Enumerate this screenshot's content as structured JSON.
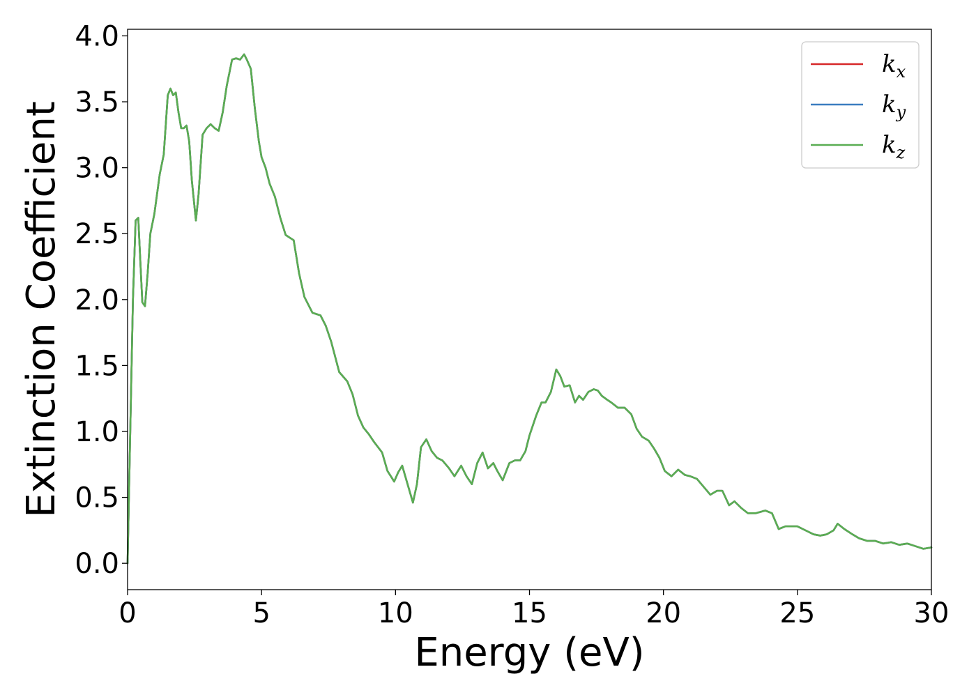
{
  "chart_data": {
    "type": "line",
    "title": "",
    "xlabel": "Energy (eV)",
    "ylabel": "Extinction Coefficient",
    "xlim": [
      0,
      30
    ],
    "ylim": [
      -0.2,
      4.05
    ],
    "xticks": [
      0,
      5,
      10,
      15,
      20,
      25,
      30
    ],
    "xtick_labels": [
      "0",
      "5",
      "10",
      "15",
      "20",
      "25",
      "30"
    ],
    "yticks": [
      0.0,
      0.5,
      1.0,
      1.5,
      2.0,
      2.5,
      3.0,
      3.5,
      4.0
    ],
    "ytick_labels": [
      "0.0",
      "0.5",
      "1.0",
      "1.5",
      "2.0",
      "2.5",
      "3.0",
      "3.5",
      "4.0"
    ],
    "grid": false,
    "legend_position": "top-right",
    "x": [
      0,
      0.1,
      0.2,
      0.3,
      0.4,
      0.45,
      0.55,
      0.65,
      0.75,
      0.85,
      1.0,
      1.2,
      1.35,
      1.5,
      1.6,
      1.7,
      1.8,
      1.9,
      2.0,
      2.1,
      2.2,
      2.3,
      2.4,
      2.55,
      2.65,
      2.8,
      2.95,
      3.1,
      3.25,
      3.4,
      3.55,
      3.7,
      3.9,
      4.05,
      4.2,
      4.35,
      4.45,
      4.6,
      4.75,
      4.9,
      5.0,
      5.15,
      5.3,
      5.5,
      5.7,
      5.9,
      6.05,
      6.2,
      6.4,
      6.6,
      6.9,
      7.2,
      7.4,
      7.6,
      7.9,
      8.2,
      8.4,
      8.6,
      8.8,
      9.0,
      9.2,
      9.5,
      9.7,
      9.95,
      10.1,
      10.25,
      10.45,
      10.65,
      10.8,
      10.95,
      11.15,
      11.35,
      11.55,
      11.75,
      12.0,
      12.2,
      12.45,
      12.65,
      12.85,
      13.05,
      13.25,
      13.45,
      13.65,
      13.8,
      14.0,
      14.25,
      14.45,
      14.65,
      14.85,
      15.0,
      15.25,
      15.45,
      15.6,
      15.8,
      16.0,
      16.15,
      16.3,
      16.5,
      16.7,
      16.85,
      17.0,
      17.2,
      17.4,
      17.55,
      17.7,
      17.9,
      18.05,
      18.3,
      18.55,
      18.8,
      19.0,
      19.2,
      19.45,
      19.65,
      19.85,
      20.05,
      20.3,
      20.55,
      20.8,
      21.0,
      21.25,
      21.5,
      21.75,
      22.0,
      22.2,
      22.45,
      22.65,
      22.9,
      23.15,
      23.45,
      23.8,
      24.05,
      24.3,
      24.55,
      24.8,
      25.0,
      25.3,
      25.6,
      25.85,
      26.1,
      26.35,
      26.5,
      26.75,
      27.05,
      27.3,
      27.6,
      27.9,
      28.2,
      28.5,
      28.8,
      29.1,
      29.4,
      29.7,
      30.0
    ],
    "series": [
      {
        "name": "k_x",
        "label_main": "k",
        "label_sub": "x",
        "color": "#d62728",
        "values": [
          0.0,
          1.0,
          2.0,
          2.6,
          2.62,
          2.4,
          1.98,
          1.95,
          2.2,
          2.5,
          2.65,
          2.95,
          3.1,
          3.55,
          3.6,
          3.55,
          3.57,
          3.42,
          3.3,
          3.3,
          3.32,
          3.2,
          2.9,
          2.6,
          2.8,
          3.25,
          3.3,
          3.33,
          3.3,
          3.28,
          3.42,
          3.62,
          3.82,
          3.83,
          3.82,
          3.86,
          3.82,
          3.75,
          3.45,
          3.2,
          3.08,
          3.0,
          2.88,
          2.78,
          2.62,
          2.49,
          2.47,
          2.45,
          2.2,
          2.02,
          1.9,
          1.88,
          1.8,
          1.68,
          1.45,
          1.38,
          1.28,
          1.12,
          1.03,
          0.98,
          0.92,
          0.84,
          0.7,
          0.62,
          0.69,
          0.74,
          0.6,
          0.46,
          0.6,
          0.88,
          0.94,
          0.85,
          0.8,
          0.78,
          0.72,
          0.66,
          0.74,
          0.66,
          0.6,
          0.76,
          0.84,
          0.72,
          0.76,
          0.7,
          0.63,
          0.76,
          0.78,
          0.78,
          0.85,
          0.97,
          1.12,
          1.22,
          1.22,
          1.3,
          1.47,
          1.42,
          1.34,
          1.35,
          1.22,
          1.27,
          1.24,
          1.3,
          1.32,
          1.31,
          1.27,
          1.24,
          1.22,
          1.18,
          1.18,
          1.13,
          1.02,
          0.96,
          0.93,
          0.87,
          0.8,
          0.7,
          0.66,
          0.71,
          0.67,
          0.66,
          0.64,
          0.58,
          0.52,
          0.55,
          0.55,
          0.44,
          0.47,
          0.42,
          0.38,
          0.38,
          0.4,
          0.38,
          0.26,
          0.28,
          0.28,
          0.28,
          0.25,
          0.22,
          0.21,
          0.22,
          0.25,
          0.3,
          0.26,
          0.22,
          0.19,
          0.17,
          0.17,
          0.15,
          0.16,
          0.14,
          0.15,
          0.13,
          0.11,
          0.12
        ]
      },
      {
        "name": "k_y",
        "label_main": "k",
        "label_sub": "y",
        "color": "#3a7dc0",
        "values": [
          0.0,
          1.0,
          2.0,
          2.6,
          2.62,
          2.4,
          1.98,
          1.95,
          2.2,
          2.5,
          2.65,
          2.95,
          3.1,
          3.55,
          3.6,
          3.55,
          3.57,
          3.42,
          3.3,
          3.3,
          3.32,
          3.2,
          2.9,
          2.6,
          2.8,
          3.25,
          3.3,
          3.33,
          3.3,
          3.28,
          3.42,
          3.62,
          3.82,
          3.83,
          3.82,
          3.86,
          3.82,
          3.75,
          3.45,
          3.2,
          3.08,
          3.0,
          2.88,
          2.78,
          2.62,
          2.49,
          2.47,
          2.45,
          2.2,
          2.02,
          1.9,
          1.88,
          1.8,
          1.68,
          1.45,
          1.38,
          1.28,
          1.12,
          1.03,
          0.98,
          0.92,
          0.84,
          0.7,
          0.62,
          0.69,
          0.74,
          0.6,
          0.46,
          0.6,
          0.88,
          0.94,
          0.85,
          0.8,
          0.78,
          0.72,
          0.66,
          0.74,
          0.66,
          0.6,
          0.76,
          0.84,
          0.72,
          0.76,
          0.7,
          0.63,
          0.76,
          0.78,
          0.78,
          0.85,
          0.97,
          1.12,
          1.22,
          1.22,
          1.3,
          1.47,
          1.42,
          1.34,
          1.35,
          1.22,
          1.27,
          1.24,
          1.3,
          1.32,
          1.31,
          1.27,
          1.24,
          1.22,
          1.18,
          1.18,
          1.13,
          1.02,
          0.96,
          0.93,
          0.87,
          0.8,
          0.7,
          0.66,
          0.71,
          0.67,
          0.66,
          0.64,
          0.58,
          0.52,
          0.55,
          0.55,
          0.44,
          0.47,
          0.42,
          0.38,
          0.38,
          0.4,
          0.38,
          0.26,
          0.28,
          0.28,
          0.28,
          0.25,
          0.22,
          0.21,
          0.22,
          0.25,
          0.3,
          0.26,
          0.22,
          0.19,
          0.17,
          0.17,
          0.15,
          0.16,
          0.14,
          0.15,
          0.13,
          0.11,
          0.12
        ]
      },
      {
        "name": "k_z",
        "label_main": "k",
        "label_sub": "z",
        "color": "#5aad52",
        "values": [
          0.0,
          1.0,
          2.0,
          2.6,
          2.62,
          2.4,
          1.98,
          1.95,
          2.2,
          2.5,
          2.65,
          2.95,
          3.1,
          3.55,
          3.6,
          3.55,
          3.57,
          3.42,
          3.3,
          3.3,
          3.32,
          3.2,
          2.9,
          2.6,
          2.8,
          3.25,
          3.3,
          3.33,
          3.3,
          3.28,
          3.42,
          3.62,
          3.82,
          3.83,
          3.82,
          3.86,
          3.82,
          3.75,
          3.45,
          3.2,
          3.08,
          3.0,
          2.88,
          2.78,
          2.62,
          2.49,
          2.47,
          2.45,
          2.2,
          2.02,
          1.9,
          1.88,
          1.8,
          1.68,
          1.45,
          1.38,
          1.28,
          1.12,
          1.03,
          0.98,
          0.92,
          0.84,
          0.7,
          0.62,
          0.69,
          0.74,
          0.6,
          0.46,
          0.6,
          0.88,
          0.94,
          0.85,
          0.8,
          0.78,
          0.72,
          0.66,
          0.74,
          0.66,
          0.6,
          0.76,
          0.84,
          0.72,
          0.76,
          0.7,
          0.63,
          0.76,
          0.78,
          0.78,
          0.85,
          0.97,
          1.12,
          1.22,
          1.22,
          1.3,
          1.47,
          1.42,
          1.34,
          1.35,
          1.22,
          1.27,
          1.24,
          1.3,
          1.32,
          1.31,
          1.27,
          1.24,
          1.22,
          1.18,
          1.18,
          1.13,
          1.02,
          0.96,
          0.93,
          0.87,
          0.8,
          0.7,
          0.66,
          0.71,
          0.67,
          0.66,
          0.64,
          0.58,
          0.52,
          0.55,
          0.55,
          0.44,
          0.47,
          0.42,
          0.38,
          0.38,
          0.4,
          0.38,
          0.26,
          0.28,
          0.28,
          0.28,
          0.25,
          0.22,
          0.21,
          0.22,
          0.25,
          0.3,
          0.26,
          0.22,
          0.19,
          0.17,
          0.17,
          0.15,
          0.16,
          0.14,
          0.15,
          0.13,
          0.11,
          0.12
        ]
      }
    ]
  }
}
